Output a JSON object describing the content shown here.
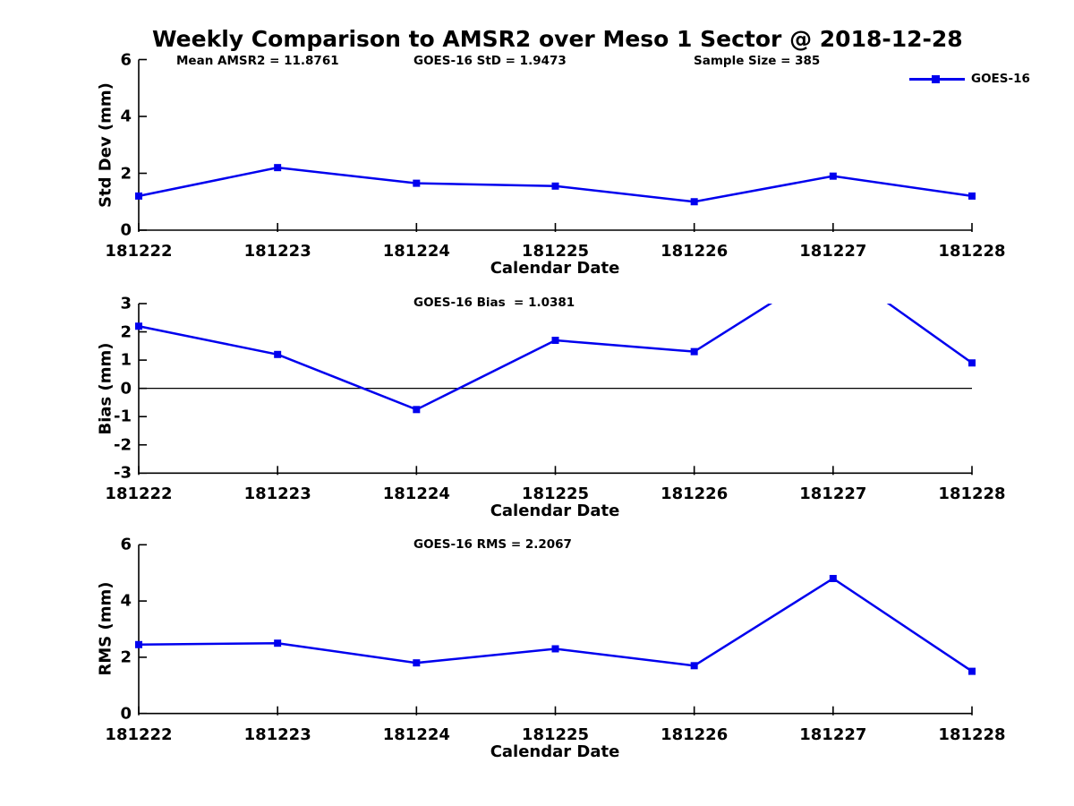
{
  "page": {
    "title": "Weekly Comparison to AMSR2 over Meso 1 Sector @ 2018-12-28"
  },
  "colors": {
    "line": "#0000ee",
    "axis": "#000000",
    "text": "#000000",
    "background": "#ffffff"
  },
  "legend": {
    "label": "GOES-16",
    "position": "top-right",
    "marker": "filled-square"
  },
  "chart_data": [
    {
      "type": "line",
      "subplot": "std-dev",
      "annotations": [
        "Mean AMSR2 = 11.8761",
        "GOES-16 StD = 1.9473",
        "Sample Size = 385"
      ],
      "categories": [
        "181222",
        "181223",
        "181224",
        "181225",
        "181226",
        "181227",
        "181228"
      ],
      "series": [
        {
          "name": "GOES-16",
          "values": [
            1.2,
            2.2,
            1.65,
            1.55,
            1.0,
            1.9,
            1.2
          ]
        }
      ],
      "xlabel": "Calendar Date",
      "ylabel": "Std Dev (mm)",
      "ylim": [
        0,
        6
      ],
      "yticks": [
        0,
        2,
        4,
        6
      ],
      "grid": false,
      "zero_line": false,
      "legend_position": "top-right"
    },
    {
      "type": "line",
      "subplot": "bias",
      "annotations": [
        "GOES-16 Bias  = 1.0381"
      ],
      "categories": [
        "181222",
        "181223",
        "181224",
        "181225",
        "181226",
        "181227",
        "181228"
      ],
      "series": [
        {
          "name": "GOES-16",
          "values": [
            2.2,
            1.2,
            -0.75,
            1.7,
            1.3,
            4.4,
            0.9
          ]
        }
      ],
      "note": "value at 181227 exceeds axis limit and line is clipped at y=3",
      "xlabel": "Calendar Date",
      "ylabel": "Bias (mm)",
      "ylim": [
        -3,
        3
      ],
      "yticks": [
        -3,
        -2,
        -1,
        0,
        1,
        2,
        3
      ],
      "grid": false,
      "zero_line": true,
      "legend_position": "none"
    },
    {
      "type": "line",
      "subplot": "rms",
      "annotations": [
        "GOES-16 RMS = 2.2067"
      ],
      "categories": [
        "181222",
        "181223",
        "181224",
        "181225",
        "181226",
        "181227",
        "181228"
      ],
      "series": [
        {
          "name": "GOES-16",
          "values": [
            2.45,
            2.5,
            1.8,
            2.3,
            1.7,
            4.8,
            1.5
          ]
        }
      ],
      "xlabel": "Calendar Date",
      "ylabel": "RMS (mm)",
      "ylim": [
        0,
        6
      ],
      "yticks": [
        0,
        2,
        4,
        6
      ],
      "grid": false,
      "zero_line": false,
      "legend_position": "none"
    }
  ]
}
